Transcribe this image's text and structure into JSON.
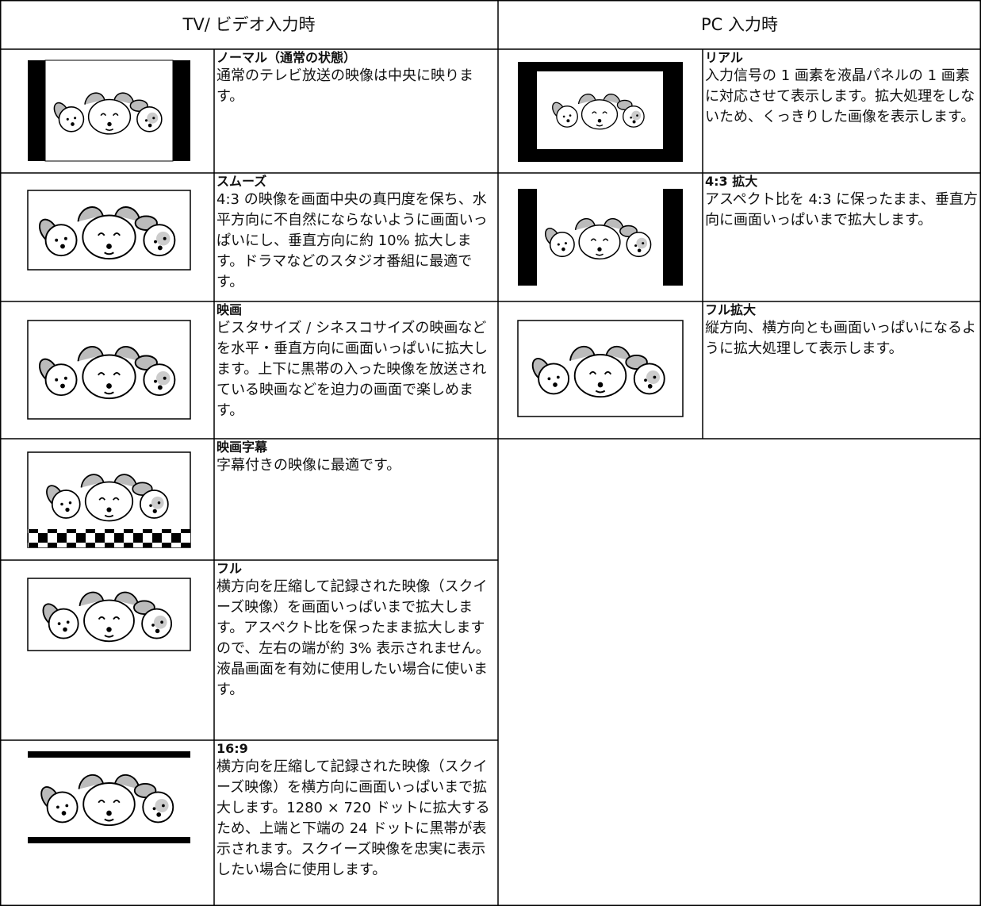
{
  "headers": {
    "tv": "TV/ ビデオ入力時",
    "pc": "PC 入力時"
  },
  "tv_modes": [
    {
      "title": "ノーマル（通常の状態）",
      "description": "通常のテレビ放送の映像は中央に映ります。"
    },
    {
      "title": "スムーズ",
      "description": "4:3 の映像を画面中央の真円度を保ち、水平方向に不自然にならないように画面いっぱいにし、垂直方向に約 10% 拡大します。ドラマなどのスタジオ番組に最適です。"
    },
    {
      "title": "映画",
      "description": "ビスタサイズ / シネスコサイズの映画などを水平・垂直方向に画面いっぱいに拡大します。上下に黒帯の入った映像を放送されている映画などを迫力の画面で楽しめます。"
    },
    {
      "title": "映画字幕",
      "description": "字幕付きの映像に最適です。"
    },
    {
      "title": "フル",
      "description": "横方向を圧縮して記録された映像（スクイーズ映像）を画面いっぱいまで拡大します。アスペクト比を保ったまま拡大しますので、左右の端が約 3% 表示されません。液晶画面を有効に使用したい場合に使います。"
    },
    {
      "title": "16:9",
      "description": "横方向を圧縮して記録された映像（スクイーズ映像）を横方向に画面いっぱいまで拡大します。1280 × 720 ドットに拡大するため、上端と下端の 24 ドットに黒帯が表示されます。スクイーズ映像を忠実に表示したい場合に使用します。"
    }
  ],
  "pc_modes": [
    {
      "title": "リアル",
      "description": "入力信号の 1 画素を液晶パネルの 1 画素に対応させて表示します。拡大処理をしないため、くっきりした画像を表示します。"
    },
    {
      "title": "4:3 拡大",
      "description": "アスペクト比を 4:3 に保ったまま、垂直方向に画面いっぱいまで拡大します。"
    },
    {
      "title": "フル拡大",
      "description": "縦方向、横方向とも画面いっぱいになるように拡大処理して表示します。"
    }
  ]
}
